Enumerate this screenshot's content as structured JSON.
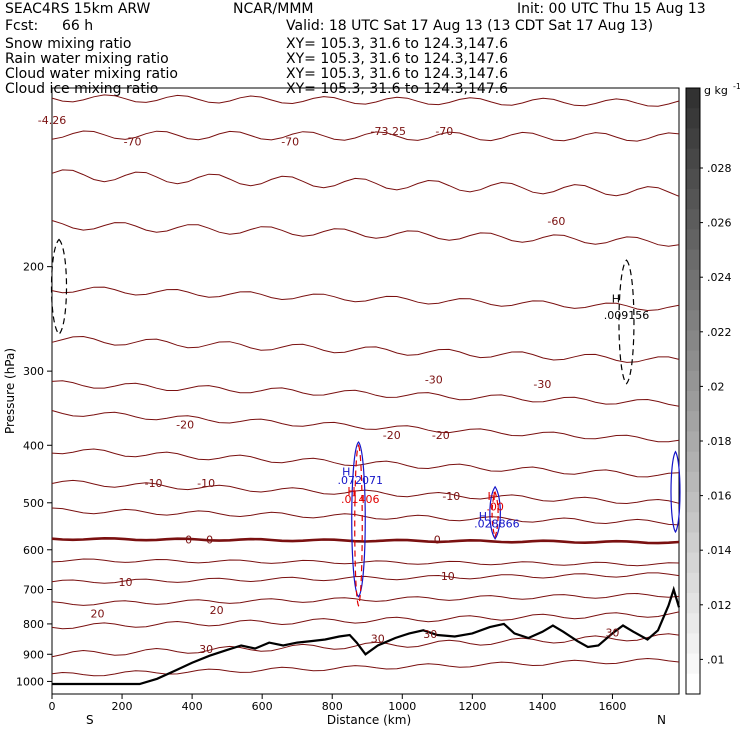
{
  "header": {
    "model": "SEAC4RS 15km ARW",
    "org": "NCAR/MMM",
    "init": "Init: 00 UTC Thu 15 Aug 13",
    "fcst_label": "Fcst:",
    "fcst_value": "66 h",
    "valid": "Valid: 18 UTC Sat 17 Aug 13 (13 CDT Sat 17 Aug 13)"
  },
  "legend": [
    {
      "name": "Snow mixing ratio",
      "xy": "XY= 105.3, 31.6 to 124.3,147.6",
      "color": "#000000"
    },
    {
      "name": "Rain water mixing ratio",
      "xy": "XY= 105.3, 31.6 to 124.3,147.6",
      "color": "#e00000"
    },
    {
      "name": "Cloud water mixing ratio",
      "xy": "XY= 105.3, 31.6 to 124.3,147.6",
      "color": "#1414c8"
    },
    {
      "name": "Cloud ice mixing ratio",
      "xy": "XY= 105.3, 31.6 to 124.3,147.6",
      "color": "#000000"
    }
  ],
  "chart_data": {
    "type": "line",
    "xlabel": "Distance (km)",
    "ylabel": "Pressure (hPa)",
    "xlim": [
      0,
      1790
    ],
    "ylim": [
      1050,
      100
    ],
    "y_axis_scale": "log",
    "x_ticks": [
      "0",
      "200",
      "400",
      "600",
      "800",
      "1000",
      "1200",
      "1400",
      "1600"
    ],
    "y_ticks": [
      "200",
      "300",
      "400",
      "500",
      "600",
      "700",
      "800",
      "900",
      "1000"
    ],
    "x_endpoint_labels": {
      "left": "S",
      "right": "N"
    },
    "colorbar": {
      "units": "g kg",
      "units_exponent": "-1",
      "tick_labels": [
        ".028",
        ".026",
        ".024",
        ".022",
        ".02",
        ".018",
        ".016",
        ".014",
        ".012",
        ".01"
      ]
    },
    "isotherm_color": "#7a1010",
    "terrain_color": "#000000",
    "contour_labels": [
      {
        "text": "-4.26",
        "color": "#7a1010",
        "x": 0,
        "p": 115
      },
      {
        "text": "-70",
        "color": "#7a1010",
        "x": 230,
        "p": 125
      },
      {
        "text": "-70",
        "color": "#7a1010",
        "x": 680,
        "p": 125
      },
      {
        "text": "-73.25",
        "color": "#7a1010",
        "x": 960,
        "p": 120
      },
      {
        "text": "-70",
        "color": "#7a1010",
        "x": 1120,
        "p": 120
      },
      {
        "text": "-60",
        "color": "#7a1010",
        "x": 1440,
        "p": 170
      },
      {
        "text": "-30",
        "color": "#7a1010",
        "x": 1090,
        "p": 315
      },
      {
        "text": "-30",
        "color": "#7a1010",
        "x": 1400,
        "p": 320
      },
      {
        "text": "-20",
        "color": "#7a1010",
        "x": 380,
        "p": 375
      },
      {
        "text": "-20",
        "color": "#7a1010",
        "x": 970,
        "p": 390
      },
      {
        "text": "-20",
        "color": "#7a1010",
        "x": 1110,
        "p": 390
      },
      {
        "text": "-10",
        "color": "#7a1010",
        "x": 290,
        "p": 470
      },
      {
        "text": "-10",
        "color": "#7a1010",
        "x": 440,
        "p": 470
      },
      {
        "text": "-10",
        "color": "#7a1010",
        "x": 1140,
        "p": 495
      },
      {
        "text": "0",
        "color": "#7a1010",
        "x": 390,
        "p": 585
      },
      {
        "text": "0",
        "color": "#7a1010",
        "x": 450,
        "p": 585
      },
      {
        "text": "0",
        "color": "#7a1010",
        "x": 1100,
        "p": 585
      },
      {
        "text": "10",
        "color": "#7a1010",
        "x": 210,
        "p": 690
      },
      {
        "text": "10",
        "color": "#7a1010",
        "x": 1130,
        "p": 675
      },
      {
        "text": "20",
        "color": "#7a1010",
        "x": 130,
        "p": 780
      },
      {
        "text": "20",
        "color": "#7a1010",
        "x": 470,
        "p": 770
      },
      {
        "text": "30",
        "color": "#7a1010",
        "x": 440,
        "p": 895
      },
      {
        "text": "30",
        "color": "#7a1010",
        "x": 930,
        "p": 860
      },
      {
        "text": "30",
        "color": "#7a1010",
        "x": 1080,
        "p": 845
      },
      {
        "text": "30",
        "color": "#7a1010",
        "x": 1600,
        "p": 840
      }
    ],
    "annotations": [
      {
        "text": "H",
        "color": "#000000",
        "x": 1610,
        "p": 230
      },
      {
        "text": ".009156",
        "color": "#000000",
        "x": 1640,
        "p": 245
      },
      {
        "text": "H",
        "color": "#1414c8",
        "x": 840,
        "p": 450
      },
      {
        "text": ".072071",
        "color": "#1414c8",
        "x": 880,
        "p": 465
      },
      {
        "text": "H",
        "color": "#e00000",
        "x": 855,
        "p": 485
      },
      {
        "text": ".01406",
        "color": "#e00000",
        "x": 880,
        "p": 500
      },
      {
        "text": "H",
        "color": "#e00000",
        "x": 1255,
        "p": 495
      },
      {
        "text": ".00",
        "color": "#e00000",
        "x": 1265,
        "p": 515
      },
      {
        "text": "H",
        "color": "#1414c8",
        "x": 1230,
        "p": 535
      },
      {
        "text": ".028866",
        "color": "#1414c8",
        "x": 1270,
        "p": 550
      }
    ]
  }
}
